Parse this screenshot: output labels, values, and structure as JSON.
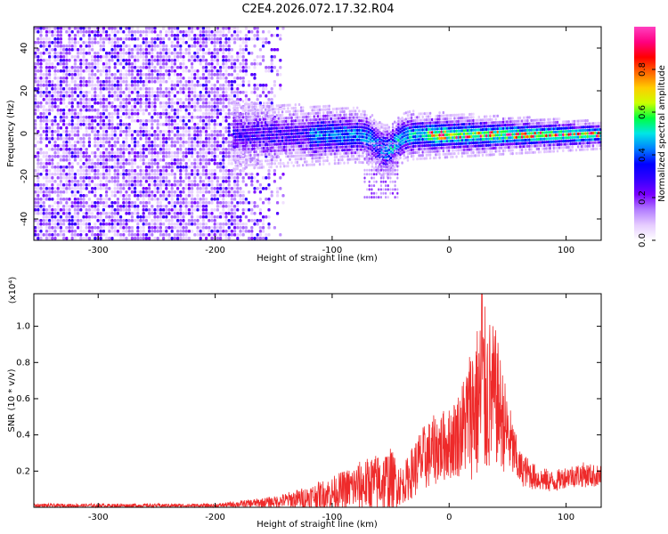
{
  "title": "C2E4.2026.072.17.32.R04",
  "chart_data": [
    {
      "type": "heatmap",
      "name": "spectrogram",
      "xlabel": "Height of straight line (km)",
      "ylabel": "Frequency (Hz)",
      "xlim": [
        -355,
        130
      ],
      "ylim": [
        -50,
        50
      ],
      "xticks": [
        -300,
        -200,
        -100,
        0,
        100
      ],
      "xticklabels": [
        "-300",
        "-200",
        "-100",
        "0",
        "100"
      ],
      "yticks": [
        -40,
        -20,
        0,
        20,
        40
      ],
      "yticklabels": [
        "-40",
        "-20",
        "0",
        "20",
        "40"
      ],
      "colorbar": {
        "label": "Normalized spectral amplitude",
        "range": [
          0,
          1
        ],
        "ticks": [
          0.0,
          0.2,
          0.4,
          0.6,
          0.8
        ],
        "ticklabels": [
          "0.0",
          "0.2",
          "0.4",
          "0.6",
          "0.8"
        ],
        "colormap": [
          "#ffffff",
          "#e6ccff",
          "#b37dff",
          "#7a00ff",
          "#3300ff",
          "#0000ff",
          "#0080ff",
          "#00e6e6",
          "#00ff40",
          "#ccff00",
          "#ffcc00",
          "#ff6600",
          "#ff0000",
          "#ff0080",
          "#ff40c0"
        ]
      },
      "features": {
        "noise_band_x": [
          -355,
          -140
        ],
        "signal_band": {
          "x": [
            -185,
            130
          ],
          "center_freq": 0,
          "halfwidth_hz_at_start": 10,
          "halfwidth_hz_at_end": 4
        },
        "dip": {
          "x": -55,
          "freq": -15
        }
      }
    },
    {
      "type": "line",
      "name": "snr",
      "xlabel": "Height of straight line (km)",
      "ylabel": "SNR (10 * v/v)",
      "yscale_label": "(x10⁴)",
      "xlim": [
        -355,
        130
      ],
      "ylim": [
        0,
        1.18
      ],
      "xticks": [
        -300,
        -200,
        -100,
        0,
        100
      ],
      "xticklabels": [
        "-300",
        "-200",
        "-100",
        "0",
        "100"
      ],
      "yticks": [
        0.2,
        0.4,
        0.6,
        0.8,
        1.0
      ],
      "yticklabels": [
        "0.2",
        "0.4",
        "0.6",
        "0.8",
        "1.0"
      ],
      "line_color": "#ee2a2a",
      "envelope": {
        "x": [
          -355,
          -250,
          -200,
          -175,
          -150,
          -125,
          -100,
          -75,
          -50,
          -40,
          -25,
          -10,
          0,
          10,
          20,
          30,
          40,
          50,
          60,
          75,
          90,
          100,
          115,
          130
        ],
        "mean": [
          0.01,
          0.01,
          0.01,
          0.02,
          0.03,
          0.05,
          0.08,
          0.12,
          0.15,
          0.12,
          0.25,
          0.33,
          0.35,
          0.42,
          0.55,
          0.62,
          0.6,
          0.4,
          0.22,
          0.16,
          0.14,
          0.17,
          0.18,
          0.17
        ],
        "amp": [
          0.01,
          0.01,
          0.01,
          0.02,
          0.03,
          0.06,
          0.09,
          0.14,
          0.18,
          0.1,
          0.18,
          0.2,
          0.2,
          0.25,
          0.4,
          0.5,
          0.38,
          0.22,
          0.1,
          0.07,
          0.06,
          0.06,
          0.07,
          0.06
        ]
      },
      "peak": {
        "x": 28,
        "y": 1.18
      }
    }
  ]
}
